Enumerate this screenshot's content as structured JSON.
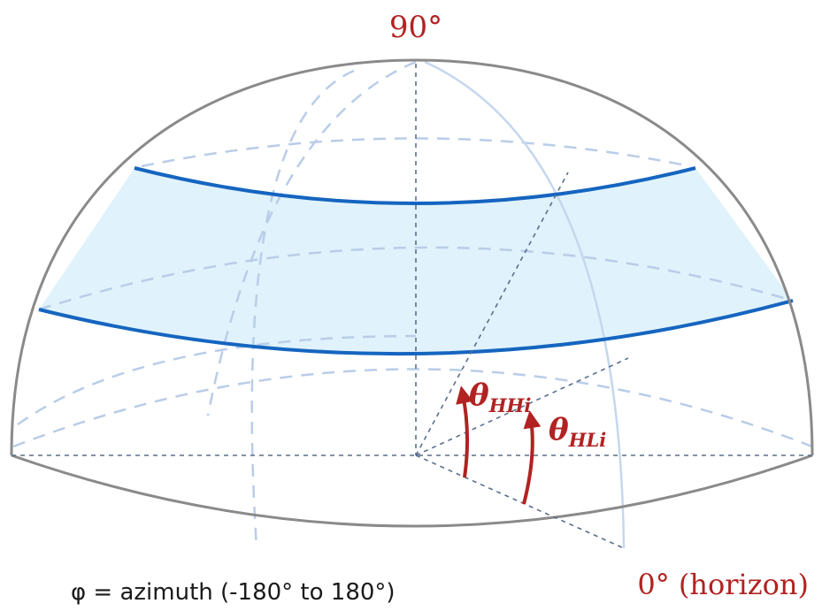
{
  "labels": {
    "zenith": "90°",
    "horizon": "0° (horizon)",
    "azimuth": "φ = azimuth (-180° to 180°)"
  },
  "angles": {
    "theta_hh": {
      "symbol": "θ",
      "subscript": "HHi"
    },
    "theta_hl": {
      "symbol": "θ",
      "subscript": "HLi"
    }
  },
  "colors": {
    "band_fill": "#e0f2fb",
    "band_edge": "#1565c0",
    "outline": "#8a8a8a",
    "dashed_guides": "#b9cde8",
    "axis_dash": "#5a6f8c",
    "angle_arrow": "#b22222",
    "meridian": "#c5d7ee"
  }
}
